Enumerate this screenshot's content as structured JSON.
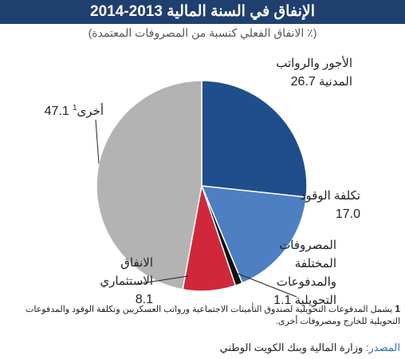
{
  "chart_data": {
    "type": "pie",
    "title": "الإنفاق في السنة المالية 2013-2014",
    "subtitle": "(٪ الانفاق الفعلي كنسبة من المصروفات المعتمدة)",
    "categories": [
      "الأجور والرواتب المدنية",
      "تكلفة الوقود",
      "المصروفات المختلفة والمدفوعات التحويلية",
      "الانفاق الاستثماري",
      "أخرى"
    ],
    "values": [
      26.7,
      17.0,
      1.1,
      8.1,
      47.1
    ],
    "value_labels": [
      "26.7",
      "17.0",
      "1.1",
      "8.1",
      "47.1"
    ],
    "colors": [
      "#1f4e8c",
      "#4d7fc2",
      "#111111",
      "#d0283a",
      "#b3b3b3"
    ],
    "footnote": {
      "marker": "1",
      "text": "يشمل المدفوعات التحويلية لصندوق التأمينات الاجتماعية ورواتب العسكريين وتكلفة الوقود والمدفوعات التحويلية للخارج ومصروفات أخرى."
    },
    "source": {
      "label": "المصدر:",
      "text": "وزارة المالية وبنك الكويت الوطني"
    }
  }
}
